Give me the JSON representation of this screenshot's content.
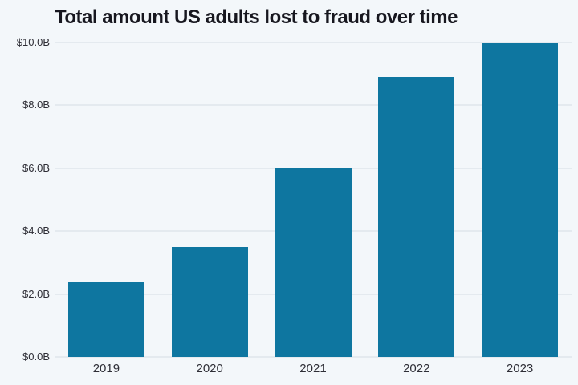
{
  "title": "Total amount US adults lost to fraud over time",
  "colors": {
    "background": "#f3f7fa",
    "bar": "#0e76a0",
    "gridline": "#e4eaef",
    "title_text": "#17171f",
    "tick_text": "#2e2e36"
  },
  "chart_data": {
    "type": "bar",
    "title": "Total amount US adults lost to fraud over time",
    "categories": [
      "2019",
      "2020",
      "2021",
      "2022",
      "2023"
    ],
    "values": [
      2.4,
      3.5,
      6.0,
      8.9,
      10.0
    ],
    "unit": "billions of US dollars",
    "xlabel": "",
    "ylabel": "",
    "ylim": [
      0,
      10
    ],
    "yticks": [
      {
        "label": "$0.0B",
        "value": 0
      },
      {
        "label": "$2.0B",
        "value": 2
      },
      {
        "label": "$4.0B",
        "value": 4
      },
      {
        "label": "$6.0B",
        "value": 6
      },
      {
        "label": "$8.0B",
        "value": 8
      },
      {
        "label": "$10.0B",
        "value": 10
      }
    ],
    "grid": true,
    "legend": false,
    "legend_position": "none",
    "bar_orientation": "vertical"
  }
}
